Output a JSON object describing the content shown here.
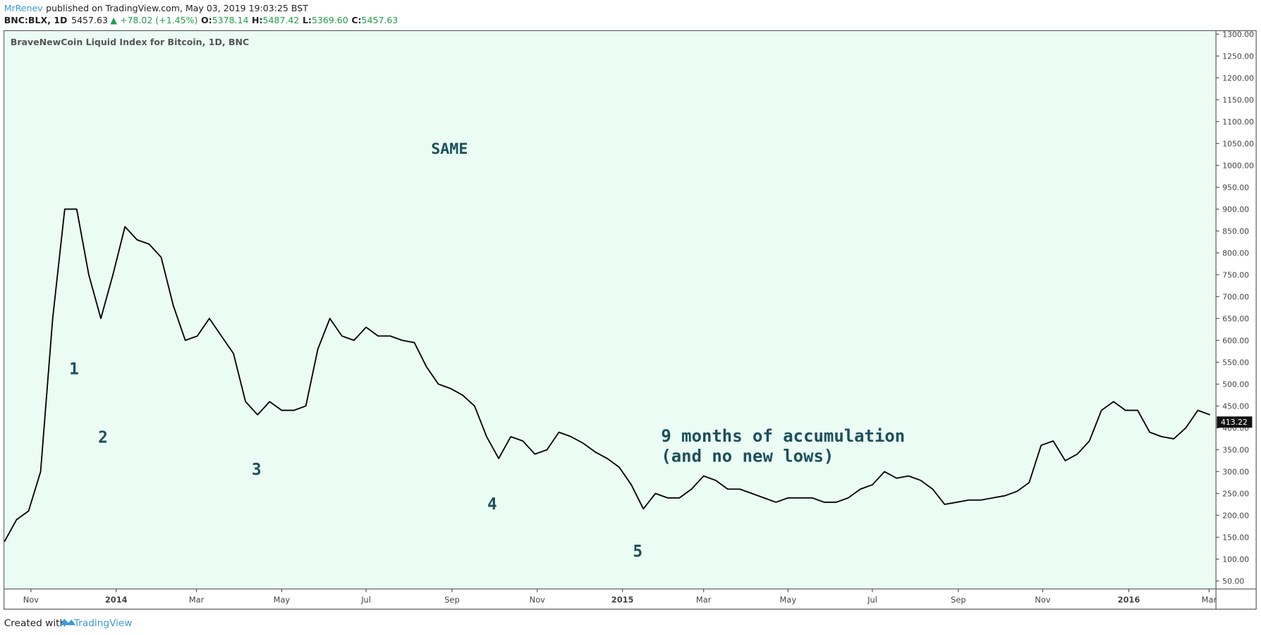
{
  "header": {
    "author": "MrRenev",
    "published": "published on TradingView.com, May 03, 2019 19:03:25 BST",
    "symbol": "BNC:BLX, 1D",
    "price": "5457.63",
    "change": "▲ +78.02 (+1.45%)",
    "open_label": "O:",
    "open": "5378.14",
    "high_label": "H:",
    "high": "5487.42",
    "low_label": "L:",
    "low": "5369.60",
    "close_label": "C:",
    "close": "5457.63"
  },
  "chart_data": {
    "type": "line",
    "title": "BraveNewCoin Liquid Index for Bitcoin, 1D, BNC",
    "color": "#000000",
    "values": [
      140,
      190,
      210,
      300,
      650,
      900,
      900,
      750,
      650,
      750,
      860,
      830,
      820,
      790,
      680,
      600,
      610,
      650,
      610,
      570,
      460,
      430,
      460,
      440,
      440,
      450,
      580,
      650,
      610,
      600,
      630,
      610,
      610,
      600,
      595,
      540,
      500,
      490,
      475,
      450,
      380,
      330,
      380,
      370,
      340,
      350,
      390,
      380,
      365,
      345,
      330,
      310,
      270,
      215,
      250,
      240,
      240,
      260,
      290,
      280,
      260,
      260,
      250,
      240,
      230,
      240,
      240,
      240,
      230,
      230,
      240,
      260,
      270,
      300,
      285,
      290,
      280,
      260,
      225,
      230,
      235,
      235,
      240,
      245,
      255,
      275,
      360,
      370,
      325,
      340,
      370,
      440,
      460,
      440,
      440,
      390,
      380,
      375,
      400,
      440,
      430
    ],
    "xlim": [
      0,
      100.5
    ],
    "xticks": [
      {
        "value": 2.2,
        "label": "Nov"
      },
      {
        "value": 9.27,
        "label": "2014"
      },
      {
        "value": 15.93,
        "label": "Mar"
      },
      {
        "value": 23,
        "label": "May"
      },
      {
        "value": 30,
        "label": "Jul"
      },
      {
        "value": 37.13,
        "label": "Sep"
      },
      {
        "value": 44.2,
        "label": "Nov"
      },
      {
        "value": 51.27,
        "label": "2015"
      },
      {
        "value": 58,
        "label": "Mar"
      },
      {
        "value": 65,
        "label": "May"
      },
      {
        "value": 72,
        "label": "Jul"
      },
      {
        "value": 79.13,
        "label": "Sep"
      },
      {
        "value": 86.13,
        "label": "Nov"
      },
      {
        "value": 93.27,
        "label": "2016"
      },
      {
        "value": 99.93,
        "label": "Mar"
      }
    ],
    "ylim": [
      31.6,
      1307
    ],
    "yticks": [
      {
        "value": 50,
        "label": "50.00"
      },
      {
        "value": 100,
        "label": "100.00"
      },
      {
        "value": 150,
        "label": "150.00"
      },
      {
        "value": 200,
        "label": "200.00"
      },
      {
        "value": 250,
        "label": "250.00"
      },
      {
        "value": 300,
        "label": "300.00"
      },
      {
        "value": 350,
        "label": "350.00"
      },
      {
        "value": 400,
        "label": "400.00"
      },
      {
        "value": 450,
        "label": "450.00"
      },
      {
        "value": 500,
        "label": "500.00"
      },
      {
        "value": 550,
        "label": "550.00"
      },
      {
        "value": 600,
        "label": "600.00"
      },
      {
        "value": 650,
        "label": "650.00"
      },
      {
        "value": 700,
        "label": "700.00"
      },
      {
        "value": 750,
        "label": "750.00"
      },
      {
        "value": 800,
        "label": "800.00"
      },
      {
        "value": 850,
        "label": "850.00"
      },
      {
        "value": 900,
        "label": "900.00"
      },
      {
        "value": 950,
        "label": "950.00"
      },
      {
        "value": 1000,
        "label": "1000.00"
      },
      {
        "value": 1050,
        "label": "1050.00"
      },
      {
        "value": 1100,
        "label": "1100.00"
      },
      {
        "value": 1150,
        "label": "1150.00"
      },
      {
        "value": 1200,
        "label": "1200.00"
      },
      {
        "value": 1250,
        "label": "1250.00"
      },
      {
        "value": 1300,
        "label": "1300.00"
      }
    ],
    "last_price": 413.22,
    "annotations": [
      "SAME",
      "1",
      "2",
      "3",
      "4",
      "5",
      "9 months of accumulation",
      "(and no new lows)"
    ]
  },
  "footer": {
    "created": "Created with",
    "brand": "TradingView"
  }
}
